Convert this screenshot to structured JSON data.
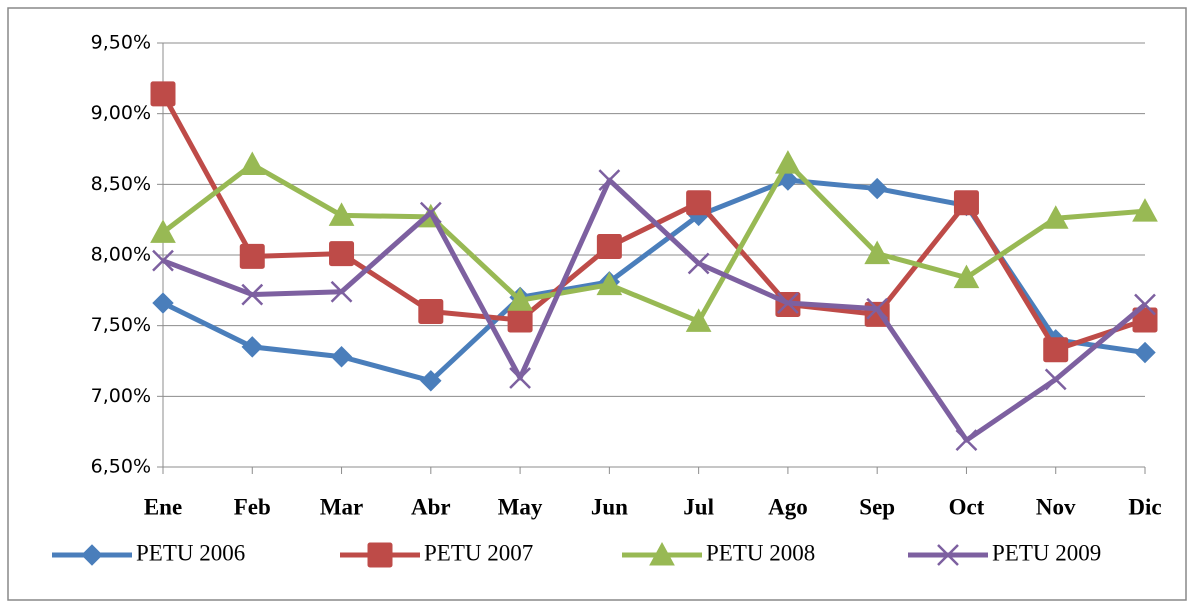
{
  "chart_data": {
    "type": "line",
    "categories": [
      "Ene",
      "Feb",
      "Mar",
      "Abr",
      "May",
      "Jun",
      "Jul",
      "Ago",
      "Sep",
      "Oct",
      "Nov",
      "Dic"
    ],
    "series": [
      {
        "name": "PETU 2006",
        "color": "#4a7ebb",
        "marker": "diamond",
        "values": [
          7.66,
          7.35,
          7.28,
          7.11,
          7.7,
          7.81,
          8.28,
          8.53,
          8.47,
          8.35,
          7.4,
          7.31
        ]
      },
      {
        "name": "PETU 2007",
        "color": "#be4b48",
        "marker": "square",
        "values": [
          9.14,
          7.99,
          8.01,
          7.6,
          7.54,
          8.06,
          8.37,
          7.65,
          7.58,
          8.37,
          7.33,
          7.54
        ]
      },
      {
        "name": "PETU 2008",
        "color": "#98b954",
        "marker": "triangle",
        "values": [
          8.16,
          8.64,
          8.28,
          8.27,
          7.68,
          7.79,
          7.53,
          8.65,
          8.01,
          7.84,
          8.26,
          8.31
        ]
      },
      {
        "name": "PETU 2009",
        "color": "#7d60a0",
        "marker": "x",
        "values": [
          7.96,
          7.72,
          7.74,
          8.3,
          7.13,
          8.53,
          7.94,
          7.66,
          7.62,
          6.69,
          7.12,
          7.65
        ]
      }
    ],
    "ylim": [
      6.5,
      9.5
    ],
    "yticks": [
      {
        "value": 6.5,
        "label": "6,50%"
      },
      {
        "value": 7.0,
        "label": "7,00%"
      },
      {
        "value": 7.5,
        "label": "7,50%"
      },
      {
        "value": 8.0,
        "label": "8,00%"
      },
      {
        "value": 8.5,
        "label": "8,50%"
      },
      {
        "value": 9.0,
        "label": "9,00%"
      },
      {
        "value": 9.5,
        "label": "9,50%"
      }
    ],
    "grid": true,
    "legend": "bottom"
  }
}
